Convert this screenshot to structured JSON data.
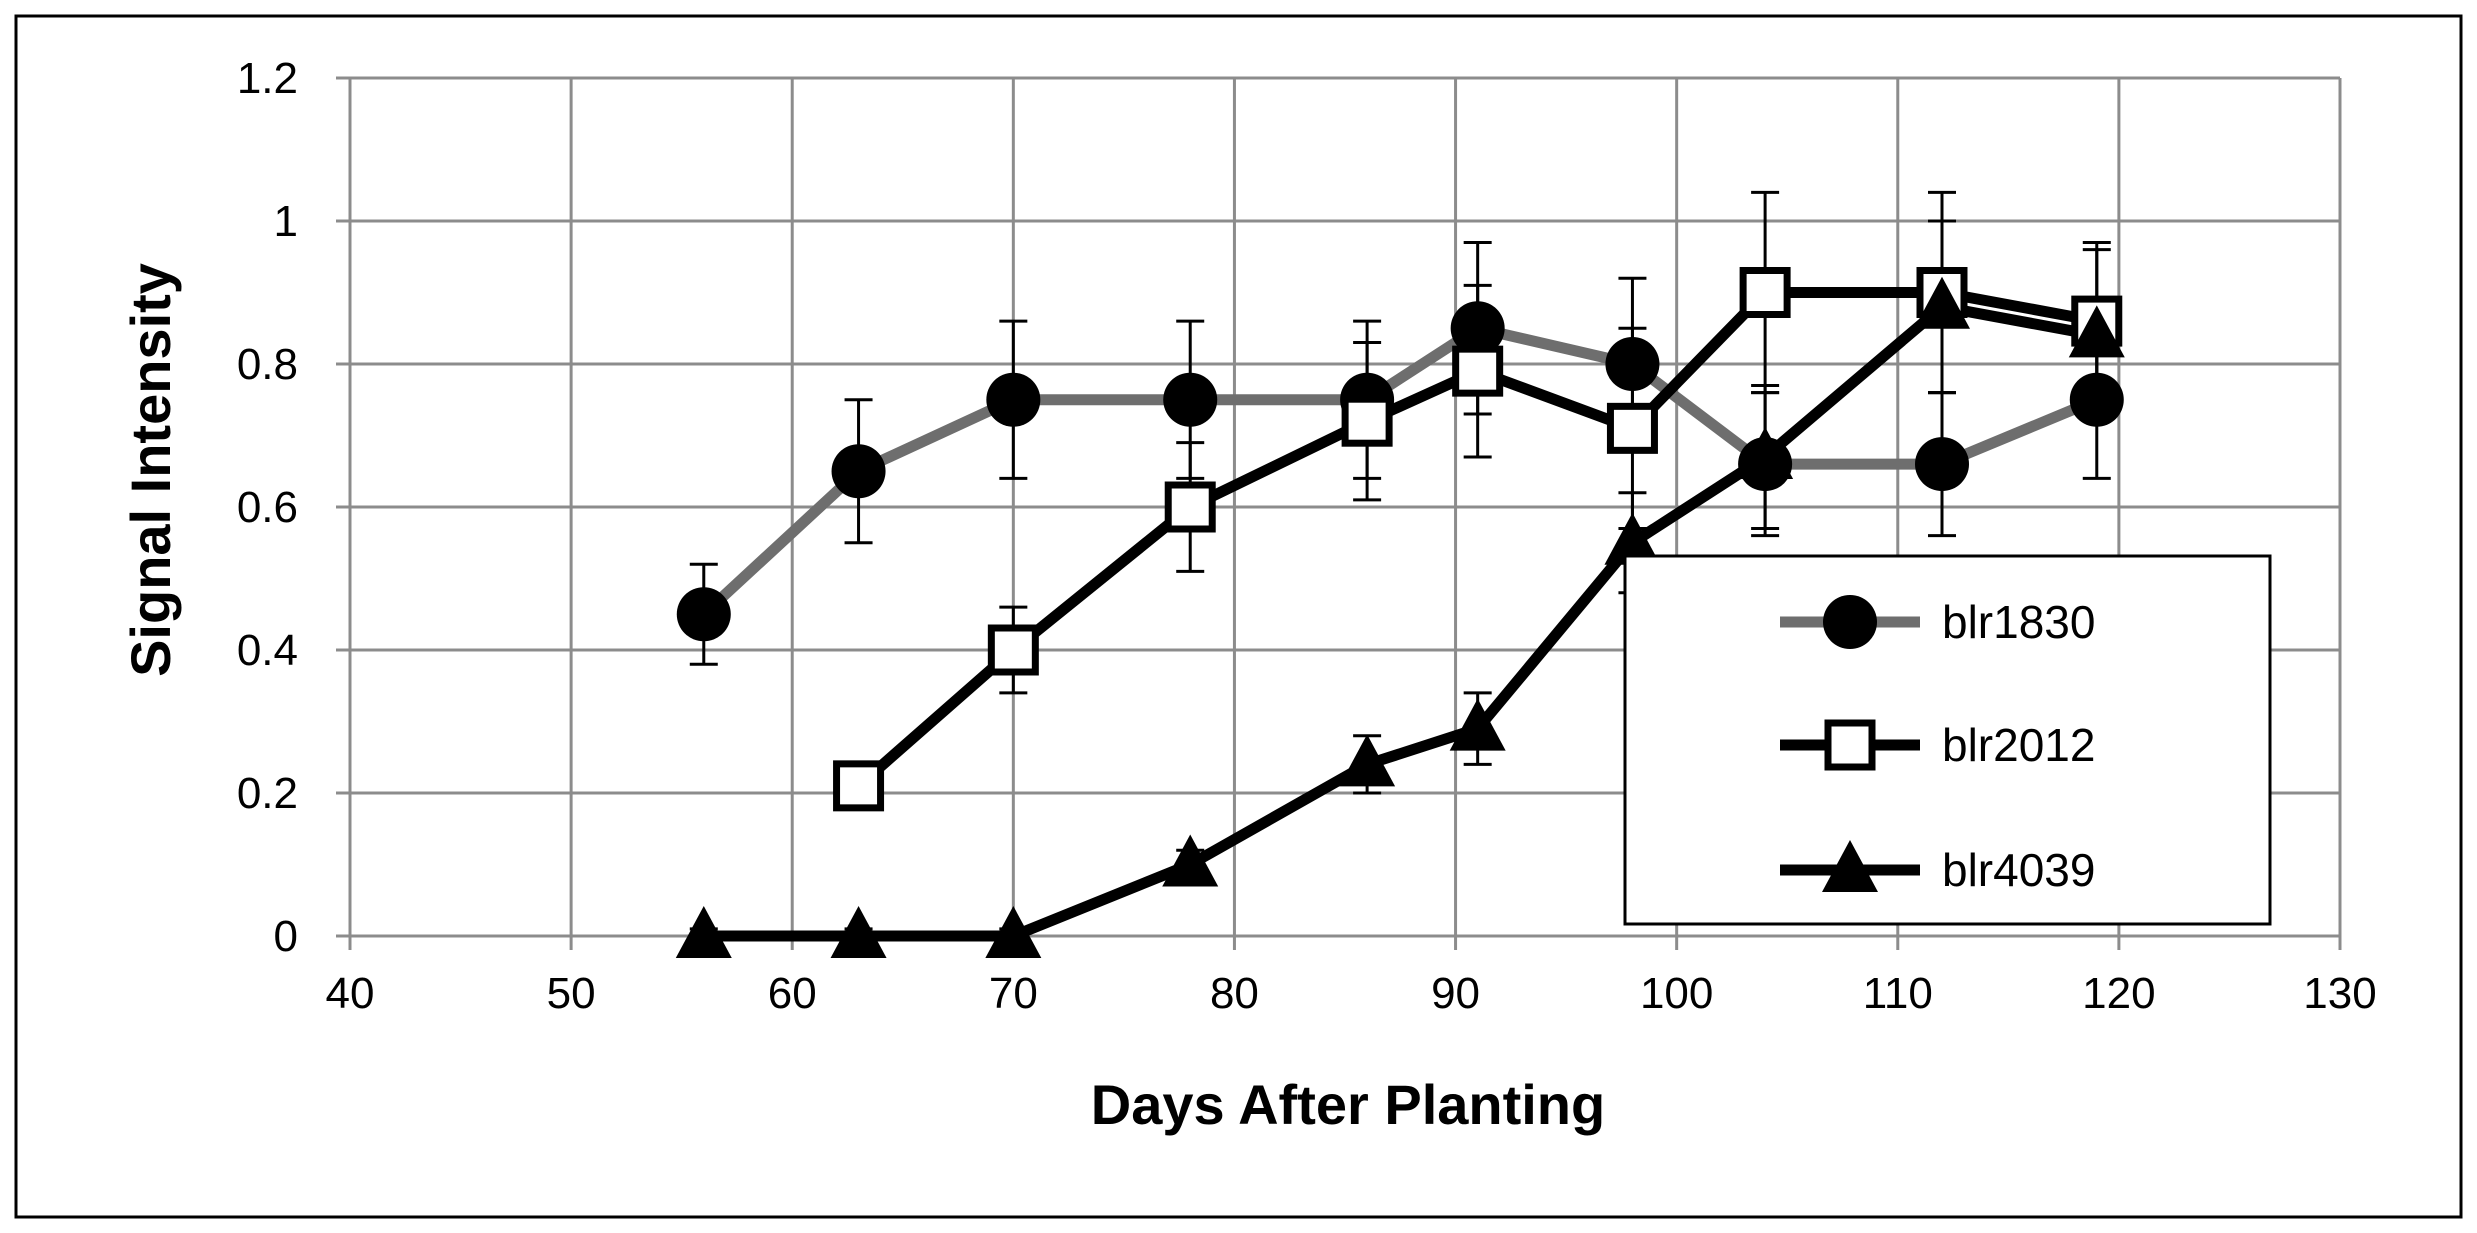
{
  "chart_data": {
    "type": "line",
    "title": "",
    "xlabel": "Days After Planting",
    "ylabel": "Signal Intensity",
    "xlim": [
      40,
      130
    ],
    "ylim": [
      0,
      1.2
    ],
    "x_ticks": [
      40,
      50,
      60,
      70,
      80,
      90,
      100,
      110,
      120,
      130
    ],
    "y_ticks": [
      0,
      0.2,
      0.4,
      0.6,
      0.8,
      1,
      1.2
    ],
    "x_tick_labels": [
      "40",
      "50",
      "60",
      "70",
      "80",
      "90",
      "100",
      "110",
      "120",
      "130"
    ],
    "y_tick_labels": [
      "0",
      "0.2",
      "0.4",
      "0.6",
      "0.8",
      "1",
      "1.2"
    ],
    "grid": true,
    "legend_position": "bottom-right",
    "series": [
      {
        "name": "blr1830",
        "marker": "filled-circle",
        "line_color": "#6e6e6e",
        "x": [
          56,
          63,
          70,
          78,
          86,
          91,
          98,
          104,
          112,
          119
        ],
        "y": [
          0.45,
          0.65,
          0.75,
          0.75,
          0.75,
          0.85,
          0.8,
          0.66,
          0.66,
          0.75
        ],
        "err": [
          0.07,
          0.1,
          0.11,
          0.11,
          0.11,
          0.12,
          0.12,
          0.1,
          0.1,
          0.11
        ]
      },
      {
        "name": "blr2012",
        "marker": "open-square",
        "line_color": "#000000",
        "x": [
          63,
          70,
          78,
          86,
          91,
          98,
          104,
          112,
          119
        ],
        "y": [
          0.21,
          0.4,
          0.6,
          0.72,
          0.79,
          0.71,
          0.9,
          0.9,
          0.86
        ],
        "err": [
          0.02,
          0.06,
          0.09,
          0.11,
          0.12,
          0.14,
          0.14,
          0.14,
          0.11
        ]
      },
      {
        "name": "blr4039",
        "marker": "filled-triangle",
        "line_color": "#000000",
        "x": [
          56,
          63,
          70,
          78,
          86,
          91,
          98,
          104,
          112,
          119
        ],
        "y": [
          0,
          0,
          0,
          0.1,
          0.24,
          0.29,
          0.55,
          0.67,
          0.88,
          0.84
        ],
        "err": [
          0.01,
          0.01,
          0.01,
          0.02,
          0.04,
          0.05,
          0.07,
          0.1,
          0.12,
          0.12
        ]
      }
    ]
  }
}
